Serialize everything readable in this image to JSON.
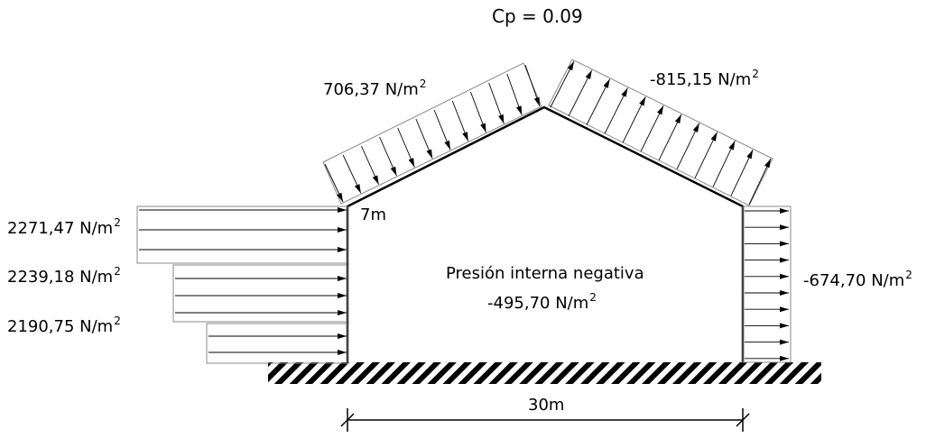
{
  "title": "Cp = 0.09",
  "roof": {
    "windward_label": "706,37 N/m",
    "leeward_label": "-815,15 N/m",
    "exp": "2"
  },
  "walls": {
    "windward_loads": [
      "2271,47 N/m",
      "2239,18 N/m",
      "2190,75 N/m"
    ],
    "leeward_label": "-674,70 N/m",
    "exp": "2"
  },
  "height_label": "7m",
  "span_label": "30m",
  "internal": {
    "title": "Presión interna negativa",
    "value": "-495,70 N/m",
    "exp": "2"
  }
}
